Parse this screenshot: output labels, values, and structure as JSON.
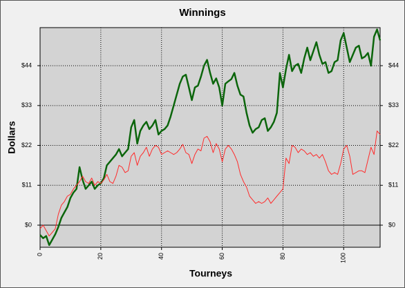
{
  "chart_data": {
    "type": "line",
    "title": "Winnings",
    "x_label": "Tourneys",
    "y_label": "Dollars",
    "x": [
      0,
      1,
      2,
      3,
      4,
      5,
      6,
      7,
      8,
      9,
      10,
      11,
      12,
      13,
      14,
      15,
      16,
      17,
      18,
      19,
      20,
      21,
      22,
      23,
      24,
      25,
      26,
      27,
      28,
      29,
      30,
      31,
      32,
      33,
      34,
      35,
      36,
      37,
      38,
      39,
      40,
      41,
      42,
      43,
      44,
      45,
      46,
      47,
      48,
      49,
      50,
      51,
      52,
      53,
      54,
      55,
      56,
      57,
      58,
      59,
      60,
      61,
      62,
      63,
      64,
      65,
      66,
      67,
      68,
      69,
      70,
      71,
      72,
      73,
      74,
      75,
      76,
      77,
      78,
      79,
      80,
      81,
      82,
      83,
      84,
      85,
      86,
      87,
      88,
      89,
      90,
      91,
      92,
      93,
      94,
      95,
      96,
      97,
      98,
      99,
      100,
      101,
      102,
      103,
      104,
      105,
      106,
      107,
      108,
      109,
      110,
      111,
      112
    ],
    "series": [
      {
        "color": "#0b650b",
        "values": [
          -2.7,
          -3.6,
          -3,
          -5.5,
          -4,
          -2.5,
          -0.5,
          2,
          3.5,
          5,
          7.5,
          9,
          10,
          16,
          12.5,
          10,
          11,
          12,
          10,
          11,
          11.5,
          13,
          16.5,
          17.5,
          18.5,
          19.5,
          21,
          19,
          20,
          21,
          27,
          29,
          22.5,
          26,
          27.5,
          28.5,
          26.5,
          27.5,
          29,
          25,
          26,
          26.5,
          27.5,
          30,
          33,
          36,
          39,
          41,
          41.5,
          38,
          34.5,
          38,
          38.5,
          41,
          44,
          45.6,
          42,
          39,
          40.5,
          38,
          33,
          39,
          39.7,
          40.3,
          42,
          38.5,
          36,
          35.5,
          31,
          27.5,
          25.5,
          26.5,
          27,
          29,
          29.5,
          26,
          27,
          28.5,
          31,
          42,
          38,
          43,
          47,
          42.5,
          44,
          44.5,
          42,
          46,
          49,
          45.5,
          48,
          50.5,
          47,
          44.5,
          45,
          42,
          42.5,
          45,
          45.5,
          51,
          53,
          49,
          45,
          47,
          49,
          49.5,
          46,
          46.5,
          47.5,
          44,
          52,
          54,
          51
        ]
      },
      {
        "color": "#ff2a2a",
        "values": [
          -1,
          0,
          -1.5,
          -3,
          -2,
          -1,
          3,
          5.5,
          6.5,
          8,
          8.5,
          10,
          11,
          12,
          13.5,
          12,
          11.5,
          13,
          11,
          12,
          11.5,
          12.5,
          14,
          12,
          11.5,
          13.5,
          16.5,
          16,
          14.5,
          15,
          19,
          20,
          16.5,
          19,
          20,
          21.5,
          19,
          21,
          22,
          21.5,
          19.5,
          20,
          20.5,
          20,
          19.5,
          20,
          21,
          22.3,
          20,
          19.5,
          17,
          19.5,
          21,
          20.5,
          24,
          24.5,
          23,
          20,
          22.5,
          21,
          17.5,
          21,
          22,
          21,
          19.5,
          17.5,
          14,
          12,
          10.5,
          8,
          7,
          6,
          6.5,
          6,
          6.5,
          7.5,
          6,
          7,
          8,
          9,
          10,
          18.5,
          17,
          22,
          21.5,
          20,
          21,
          20.5,
          19.5,
          20,
          19,
          19.5,
          18.5,
          19.5,
          17.5,
          15,
          14,
          14.5,
          14,
          17,
          21,
          22,
          19,
          14,
          14.5,
          15,
          15,
          14.5,
          18,
          21.5,
          19.5,
          26,
          25
        ]
      }
    ],
    "xlim": [
      0,
      112
    ],
    "xticks": [
      0,
      20,
      40,
      60,
      80,
      100
    ],
    "ylim": [
      -6.1,
      54.5
    ],
    "yticks": [
      {
        "value": 0,
        "label": "$0"
      },
      {
        "value": 11,
        "label": "$11"
      },
      {
        "value": 22,
        "label": "$22"
      },
      {
        "value": 33,
        "label": "$33"
      },
      {
        "value": 44,
        "label": "$44"
      }
    ],
    "grid": true
  }
}
